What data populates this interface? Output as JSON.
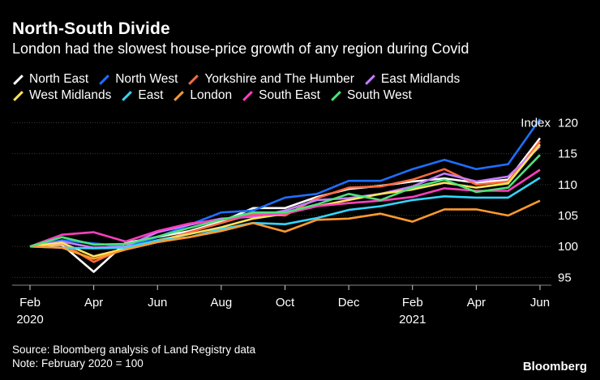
{
  "title": "North-South Divide",
  "subtitle": "London had the slowest house-price growth of any region during Covid",
  "source": "Source: Bloomberg analysis of Land Registry data",
  "note": "Note: February 2020 = 100",
  "brand": "Bloomberg",
  "chart_data": {
    "type": "line",
    "title": "North-South Divide",
    "ylabel": "Index",
    "ylim": [
      93,
      122
    ],
    "yticks": [
      95,
      100,
      105,
      110,
      115,
      120
    ],
    "x": [
      "2020-02",
      "2020-03",
      "2020-04",
      "2020-05",
      "2020-06",
      "2020-07",
      "2020-08",
      "2020-09",
      "2020-10",
      "2020-11",
      "2020-12",
      "2021-01",
      "2021-02",
      "2021-03",
      "2021-04",
      "2021-05",
      "2021-06"
    ],
    "xticks": [
      {
        "index": 0,
        "label": "Feb",
        "year": "2020"
      },
      {
        "index": 2,
        "label": "Apr",
        "year": ""
      },
      {
        "index": 4,
        "label": "Jun",
        "year": ""
      },
      {
        "index": 6,
        "label": "Aug",
        "year": ""
      },
      {
        "index": 8,
        "label": "Oct",
        "year": ""
      },
      {
        "index": 10,
        "label": "Dec",
        "year": ""
      },
      {
        "index": 12,
        "label": "Feb",
        "year": "2021"
      },
      {
        "index": 14,
        "label": "Apr",
        "year": ""
      },
      {
        "index": 16,
        "label": "Jun",
        "year": ""
      }
    ],
    "series": [
      {
        "name": "North East",
        "color": "#ffffff",
        "values": [
          100,
          100.3,
          95.9,
          100.6,
          101.5,
          102.5,
          104.0,
          106.2,
          106.2,
          108.0,
          109.3,
          109.8,
          110.5,
          111.0,
          110.3,
          110.8,
          117.5
        ]
      },
      {
        "name": "North West",
        "color": "#1f6fff",
        "values": [
          100,
          101.0,
          100.5,
          100.0,
          101.5,
          103.5,
          105.5,
          105.8,
          107.9,
          108.5,
          110.6,
          110.6,
          112.5,
          114.0,
          112.5,
          113.3,
          120.6
        ]
      },
      {
        "name": "Yorkshire and The Humber",
        "color": "#ff6a3d",
        "values": [
          100,
          100.5,
          97.5,
          99.8,
          100.8,
          102.3,
          103.8,
          105.3,
          105.0,
          107.8,
          109.5,
          109.7,
          110.8,
          112.5,
          110.0,
          110.5,
          117.0
        ]
      },
      {
        "name": "East Midlands",
        "color": "#c77dff",
        "values": [
          100,
          100.8,
          99.8,
          100.0,
          102.3,
          103.5,
          104.5,
          104.8,
          105.8,
          107.5,
          107.8,
          108.5,
          109.7,
          111.8,
          110.5,
          111.3,
          116.2
        ]
      },
      {
        "name": "West Midlands",
        "color": "#ffe45c",
        "values": [
          100,
          100.6,
          98.4,
          99.7,
          101.0,
          102.0,
          103.1,
          104.5,
          105.3,
          106.5,
          107.5,
          108.5,
          109.2,
          110.3,
          109.5,
          110.2,
          116.5
        ]
      },
      {
        "name": "East",
        "color": "#33d6ff",
        "values": [
          100,
          99.8,
          99.7,
          99.8,
          101.0,
          101.5,
          102.8,
          103.8,
          103.6,
          104.6,
          105.9,
          106.5,
          107.5,
          108.1,
          107.9,
          107.9,
          111.1
        ]
      },
      {
        "name": "London",
        "color": "#ff9a2e",
        "values": [
          100,
          99.8,
          98.0,
          99.5,
          100.7,
          101.5,
          102.5,
          103.8,
          102.4,
          104.3,
          104.5,
          105.3,
          104.0,
          106.0,
          106.0,
          105.0,
          107.4
        ]
      },
      {
        "name": "South East",
        "color": "#ff3fbf",
        "values": [
          100,
          101.9,
          102.3,
          100.8,
          102.5,
          103.7,
          104.3,
          105.0,
          105.3,
          106.5,
          107.0,
          107.4,
          108.0,
          109.4,
          109.0,
          109.0,
          112.4
        ]
      },
      {
        "name": "South West",
        "color": "#4ce37a",
        "values": [
          100,
          101.5,
          100.3,
          100.4,
          101.6,
          103.0,
          104.3,
          105.5,
          105.5,
          106.8,
          108.5,
          107.5,
          109.5,
          110.8,
          108.8,
          109.5,
          114.8
        ]
      }
    ]
  }
}
